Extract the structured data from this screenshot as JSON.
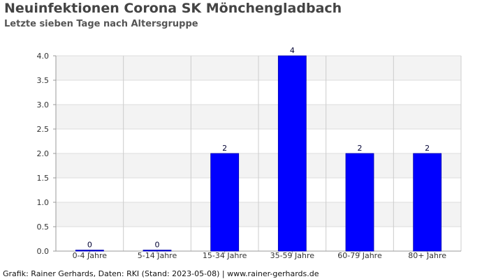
{
  "chart_data": {
    "type": "bar",
    "title": "Neuinfektionen Corona SK Mönchengladbach",
    "subtitle": "Letzte sieben Tage nach Altersgruppe",
    "xlabel": "",
    "ylabel": "",
    "categories": [
      "0-4 Jahre",
      "5-14 Jahre",
      "15-34 Jahre",
      "35-59 Jahre",
      "60-79 Jahre",
      "80+ Jahre"
    ],
    "values": [
      0,
      0,
      2,
      4,
      2,
      2
    ],
    "data_labels": [
      "0",
      "0",
      "2",
      "4",
      "2",
      "2"
    ],
    "ylim": [
      0,
      4
    ],
    "yticks": [
      "0.0",
      "0.5",
      "1.0",
      "1.5",
      "2.0",
      "2.5",
      "3.0",
      "3.5",
      "4.0"
    ],
    "grid": true,
    "bar_color": "#0000ff"
  },
  "footer": "Grafik: Rainer Gerhards, Daten: RKI (Stand: 2023-05-08) | www.rainer-gerhards.de"
}
